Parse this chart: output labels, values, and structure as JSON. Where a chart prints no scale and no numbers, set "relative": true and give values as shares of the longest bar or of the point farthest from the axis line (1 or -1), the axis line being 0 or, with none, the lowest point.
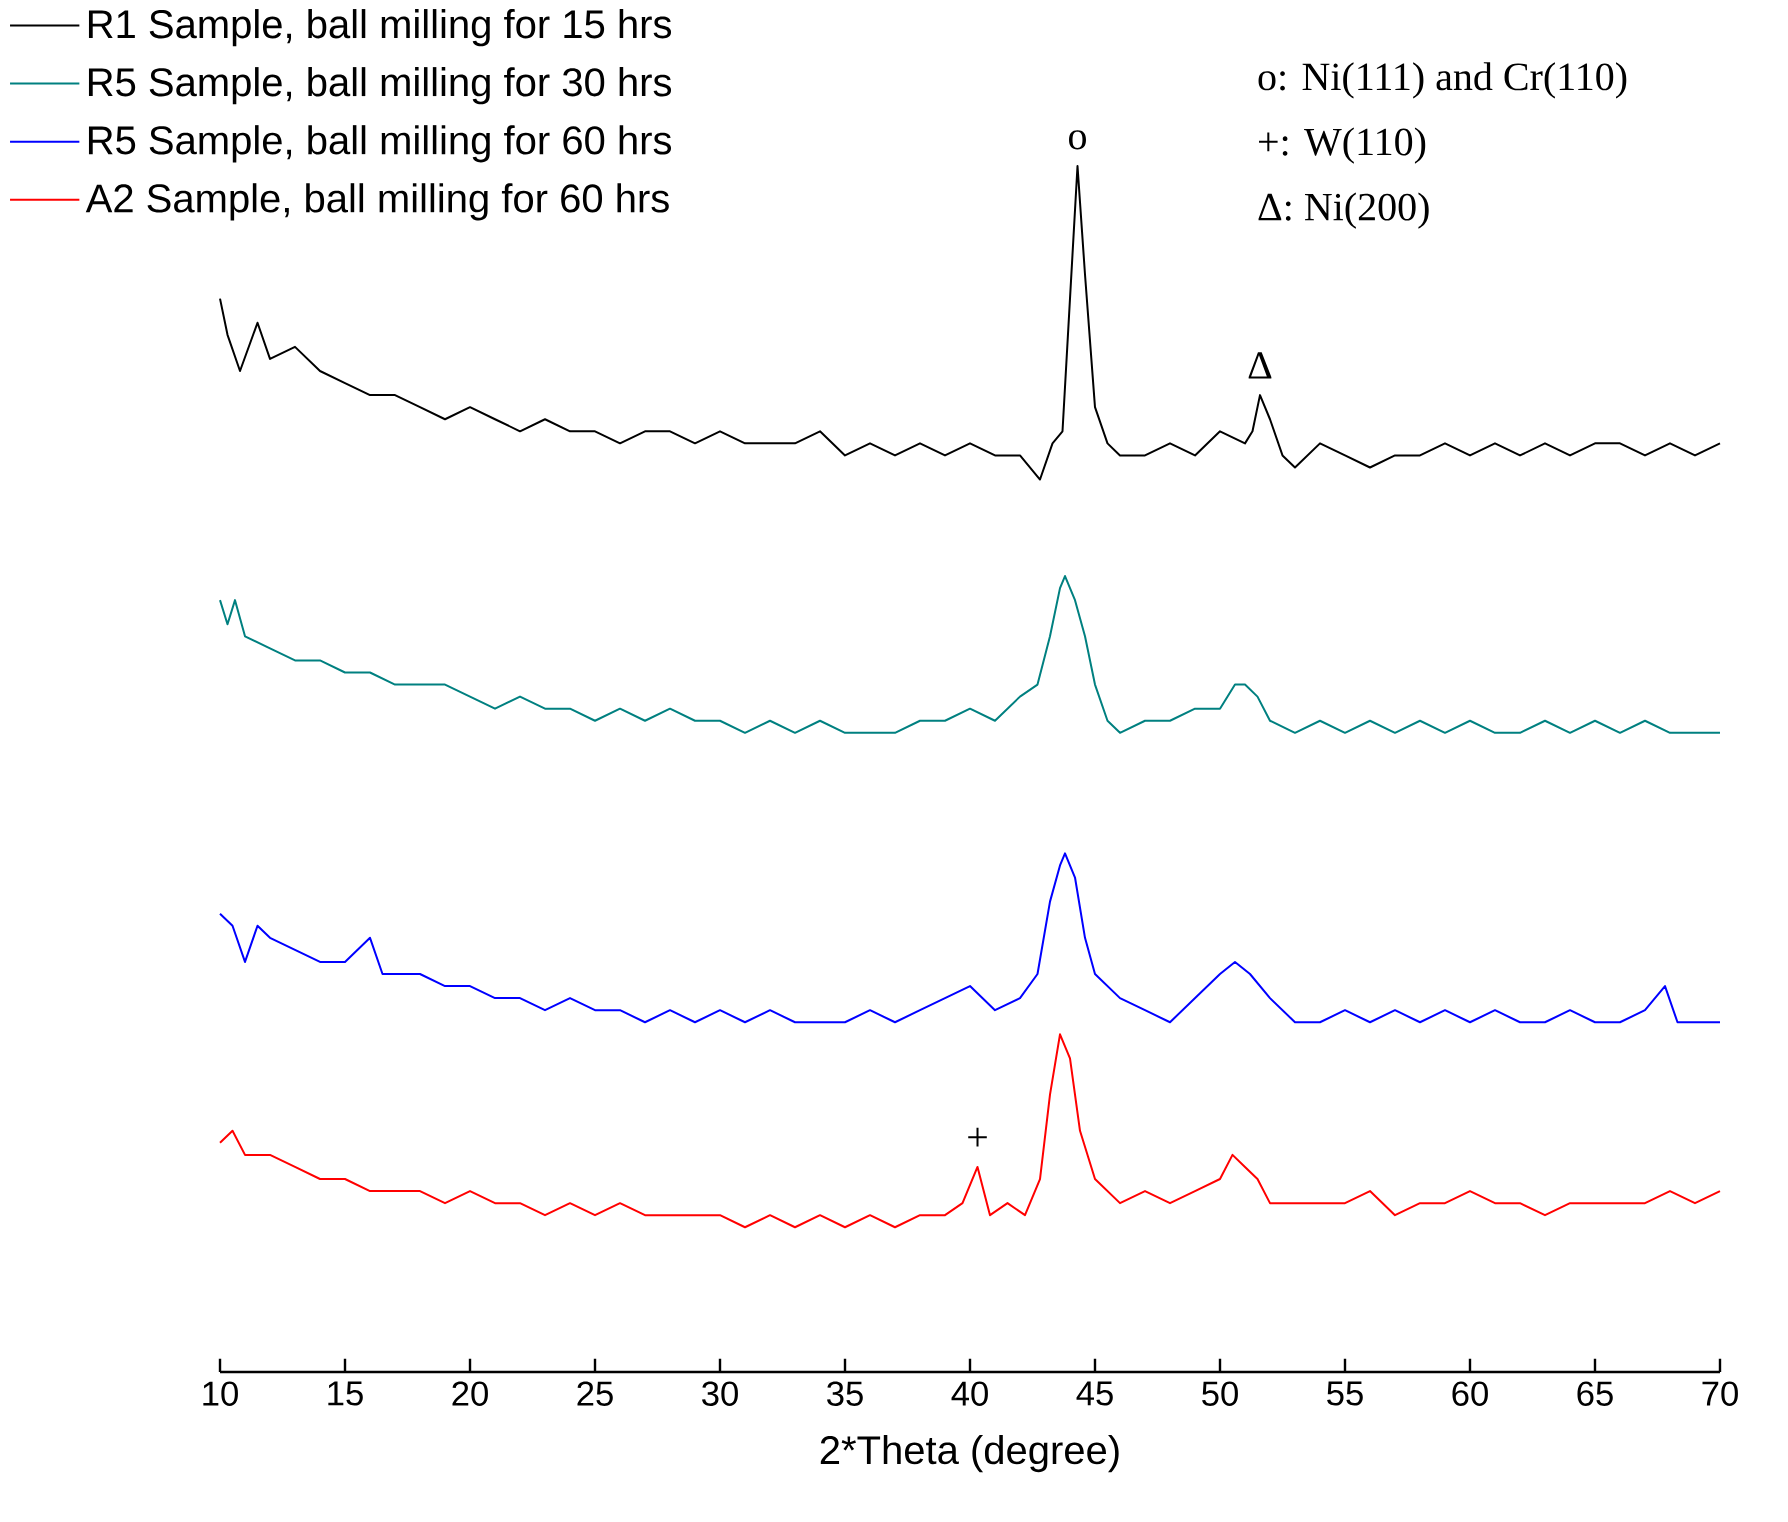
{
  "chart_data": {
    "type": "line",
    "relative": true,
    "xlabel": "2*Theta (degree)",
    "xlim": [
      10,
      70
    ],
    "xticks": [
      10,
      15,
      20,
      25,
      30,
      35,
      40,
      45,
      50,
      55,
      60,
      65,
      70
    ],
    "legend": "top left",
    "series": [
      {
        "name": "R1 Sample, ball milling for 15 hrs",
        "color": "#000000",
        "x": [
          10,
          10.3,
          10.8,
          11.5,
          12,
          13,
          14,
          15,
          16,
          17,
          18,
          19,
          20,
          21,
          22,
          23,
          24,
          25,
          26,
          27,
          28,
          29,
          30,
          31,
          32,
          33,
          34,
          35,
          36,
          37,
          38,
          39,
          40,
          41,
          42,
          42.8,
          43.3,
          43.7,
          44.0,
          44.3,
          44.6,
          45,
          45.5,
          46,
          47,
          48,
          49,
          50,
          51,
          51.3,
          51.6,
          52,
          52.5,
          53,
          54,
          55,
          56,
          57,
          58,
          59,
          60,
          61,
          62,
          63,
          64,
          65,
          66,
          67,
          68,
          69,
          70
        ],
        "values": [
          0.89,
          0.86,
          0.83,
          0.87,
          0.84,
          0.85,
          0.83,
          0.82,
          0.81,
          0.81,
          0.8,
          0.79,
          0.8,
          0.79,
          0.78,
          0.79,
          0.78,
          0.78,
          0.77,
          0.78,
          0.78,
          0.77,
          0.78,
          0.77,
          0.77,
          0.77,
          0.78,
          0.76,
          0.77,
          0.76,
          0.77,
          0.76,
          0.77,
          0.76,
          0.76,
          0.74,
          0.77,
          0.78,
          0.89,
          1.0,
          0.91,
          0.8,
          0.77,
          0.76,
          0.76,
          0.77,
          0.76,
          0.78,
          0.77,
          0.78,
          0.81,
          0.79,
          0.76,
          0.75,
          0.77,
          0.76,
          0.75,
          0.76,
          0.76,
          0.77,
          0.76,
          0.77,
          0.76,
          0.77,
          0.76,
          0.77,
          0.77,
          0.76,
          0.77,
          0.76,
          0.77
        ]
      },
      {
        "name": "R5 Sample, ball milling for 30 hrs",
        "color": "#008080",
        "x": [
          10,
          10.3,
          10.6,
          11,
          12,
          13,
          14,
          15,
          16,
          17,
          18,
          19,
          20,
          21,
          22,
          23,
          24,
          25,
          26,
          27,
          28,
          29,
          30,
          31,
          32,
          33,
          34,
          35,
          36,
          37,
          38,
          39,
          40,
          41,
          42,
          42.7,
          43.2,
          43.6,
          43.8,
          44.2,
          44.6,
          45,
          45.5,
          46,
          47,
          48,
          49,
          50,
          50.6,
          51,
          51.5,
          52,
          53,
          54,
          55,
          56,
          57,
          58,
          59,
          60,
          61,
          62,
          63,
          64,
          65,
          66,
          67,
          68,
          69,
          70
        ],
        "values": [
          0.64,
          0.62,
          0.64,
          0.61,
          0.6,
          0.59,
          0.59,
          0.58,
          0.58,
          0.57,
          0.57,
          0.57,
          0.56,
          0.55,
          0.56,
          0.55,
          0.55,
          0.54,
          0.55,
          0.54,
          0.55,
          0.54,
          0.54,
          0.53,
          0.54,
          0.53,
          0.54,
          0.53,
          0.53,
          0.53,
          0.54,
          0.54,
          0.55,
          0.54,
          0.56,
          0.57,
          0.61,
          0.65,
          0.66,
          0.64,
          0.61,
          0.57,
          0.54,
          0.53,
          0.54,
          0.54,
          0.55,
          0.55,
          0.57,
          0.57,
          0.56,
          0.54,
          0.53,
          0.54,
          0.53,
          0.54,
          0.53,
          0.54,
          0.53,
          0.54,
          0.53,
          0.53,
          0.54,
          0.53,
          0.54,
          0.53,
          0.54,
          0.53,
          0.53,
          0.53
        ]
      },
      {
        "name": "R5 Sample, ball milling for 60 hrs",
        "color": "#0000ff",
        "x": [
          10,
          10.5,
          11,
          11.5,
          12,
          13,
          14,
          15,
          16,
          16.5,
          17,
          18,
          19,
          20,
          21,
          22,
          23,
          24,
          25,
          26,
          27,
          28,
          29,
          30,
          31,
          32,
          33,
          34,
          35,
          36,
          37,
          38,
          39,
          40,
          41,
          42,
          42.7,
          43.2,
          43.6,
          43.8,
          44.2,
          44.6,
          45,
          46,
          47,
          48,
          49,
          50,
          50.6,
          51.2,
          52,
          53,
          54,
          55,
          56,
          57,
          58,
          59,
          60,
          61,
          62,
          63,
          64,
          65,
          66,
          67,
          67.8,
          68.3,
          69,
          70
        ],
        "values": [
          0.38,
          0.37,
          0.34,
          0.37,
          0.36,
          0.35,
          0.34,
          0.34,
          0.36,
          0.33,
          0.33,
          0.33,
          0.32,
          0.32,
          0.31,
          0.31,
          0.3,
          0.31,
          0.3,
          0.3,
          0.29,
          0.3,
          0.29,
          0.3,
          0.29,
          0.3,
          0.29,
          0.29,
          0.29,
          0.3,
          0.29,
          0.3,
          0.31,
          0.32,
          0.3,
          0.31,
          0.33,
          0.39,
          0.42,
          0.43,
          0.41,
          0.36,
          0.33,
          0.31,
          0.3,
          0.29,
          0.31,
          0.33,
          0.34,
          0.33,
          0.31,
          0.29,
          0.29,
          0.3,
          0.29,
          0.3,
          0.29,
          0.3,
          0.29,
          0.3,
          0.29,
          0.29,
          0.3,
          0.29,
          0.29,
          0.3,
          0.32,
          0.29,
          0.29,
          0.29
        ]
      },
      {
        "name": "A2 Sample, ball milling for 60 hrs",
        "color": "#ff0000",
        "x": [
          10,
          10.5,
          11,
          12,
          13,
          14,
          15,
          16,
          17,
          18,
          19,
          20,
          21,
          22,
          23,
          24,
          25,
          26,
          27,
          28,
          29,
          30,
          31,
          32,
          33,
          34,
          35,
          36,
          37,
          38,
          39,
          39.7,
          40.3,
          40.8,
          41.5,
          42.2,
          42.8,
          43.2,
          43.6,
          44,
          44.4,
          45,
          46,
          47,
          48,
          49,
          50,
          50.5,
          51,
          51.5,
          52,
          53,
          54,
          55,
          56,
          57,
          58,
          59,
          60,
          61,
          62,
          63,
          64,
          65,
          66,
          67,
          68,
          69,
          70
        ],
        "values": [
          0.19,
          0.2,
          0.18,
          0.18,
          0.17,
          0.16,
          0.16,
          0.15,
          0.15,
          0.15,
          0.14,
          0.15,
          0.14,
          0.14,
          0.13,
          0.14,
          0.13,
          0.14,
          0.13,
          0.13,
          0.13,
          0.13,
          0.12,
          0.13,
          0.12,
          0.13,
          0.12,
          0.13,
          0.12,
          0.13,
          0.13,
          0.14,
          0.17,
          0.13,
          0.14,
          0.13,
          0.16,
          0.23,
          0.28,
          0.26,
          0.2,
          0.16,
          0.14,
          0.15,
          0.14,
          0.15,
          0.16,
          0.18,
          0.17,
          0.16,
          0.14,
          0.14,
          0.14,
          0.14,
          0.15,
          0.13,
          0.14,
          0.14,
          0.15,
          0.14,
          0.14,
          0.13,
          0.14,
          0.14,
          0.14,
          0.14,
          0.15,
          0.14,
          0.15
        ]
      }
    ],
    "annotations": [
      {
        "text": "o",
        "x": 44.3,
        "y": 1.0
      },
      {
        "text": "+",
        "x": 40.3,
        "y": 0.17
      },
      {
        "text": "Δ",
        "x": 51.6,
        "y": 0.81
      },
      "o: Ni(111) and Cr(110)",
      "+: W(110)",
      "Δ: Ni(200)"
    ]
  }
}
